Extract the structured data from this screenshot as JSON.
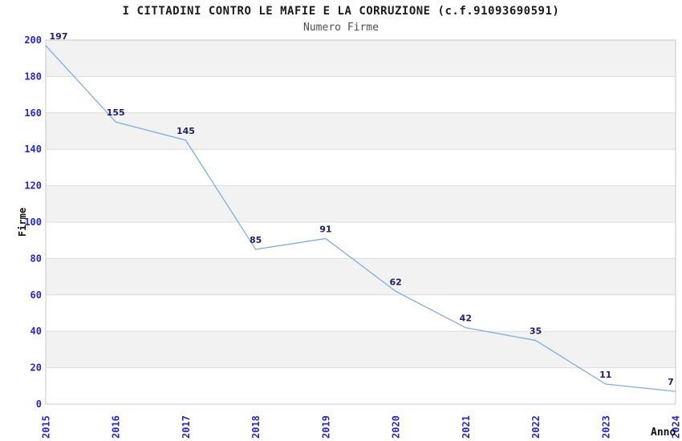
{
  "header": {
    "title": "I CITTADINI CONTRO LE MAFIE E LA CORRUZIONE (c.f.91093690591)",
    "subtitle": "Numero Firme"
  },
  "chart_data": {
    "type": "line",
    "title": "I CITTADINI CONTRO LE MAFIE E LA CORRUZIONE (c.f.91093690591)",
    "subtitle": "Numero Firme",
    "xlabel": "Anno",
    "ylabel": "Firme",
    "x": [
      "2015",
      "2016",
      "2017",
      "2018",
      "2019",
      "2020",
      "2021",
      "2022",
      "2023",
      "2024"
    ],
    "series": [
      {
        "name": "Numero Firme",
        "values": [
          197,
          155,
          145,
          85,
          91,
          62,
          42,
          35,
          11,
          7
        ]
      }
    ],
    "ylim": [
      0,
      200
    ],
    "ytick_step": 20,
    "grid": "horizontal-only",
    "alternating_bands": true,
    "legend": "none",
    "colors": {
      "line": "#7dafe2",
      "tick_label": "#2626cc",
      "data_label": "#20206e",
      "band": "#f2f2f2",
      "gridline": "#dcdcdc",
      "plot_border": "#c8c8c8",
      "title": "#1a1a1a",
      "subtitle": "#4d4d4d",
      "axis_title": "#111111",
      "background": "#ffffff"
    }
  }
}
